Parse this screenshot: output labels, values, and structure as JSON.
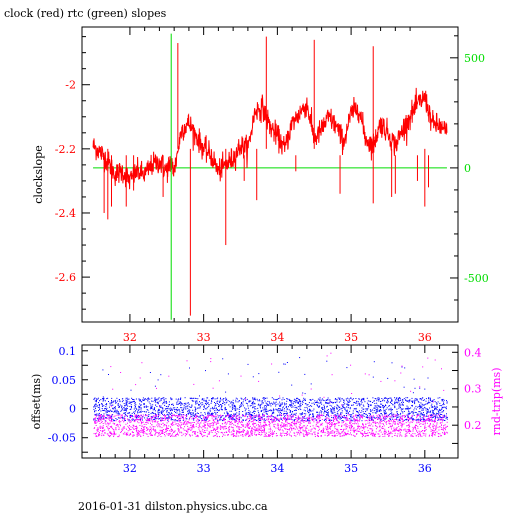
{
  "title": "clock (red) rtc (green) slopes",
  "footer": "2016-01-31 dilston.physics.ubc.ca",
  "colors": {
    "red": "#ff0000",
    "green": "#00dd00",
    "blue": "#0000ff",
    "magenta": "#ff00ff",
    "axis": "#000000"
  },
  "chart_data": [
    {
      "type": "line",
      "ylabel": "clockslope",
      "y2label": "",
      "xlim": [
        31.35,
        36.45
      ],
      "ylim": [
        -2.74,
        -1.82
      ],
      "y2lim": [
        -700,
        640
      ],
      "x_ticks": [
        32,
        33,
        34,
        35,
        36
      ],
      "y_ticks": [
        -2.6,
        -2.4,
        -2.2,
        -2
      ],
      "y2_ticks": [
        -500,
        0,
        500
      ],
      "x_tick_labels": [
        "32",
        "33",
        "34",
        "35",
        "36"
      ],
      "y_tick_labels": [
        "-2.6",
        "-2.4",
        "-2.2",
        "-2"
      ],
      "y2_tick_labels": [
        "-500",
        "0",
        "500"
      ],
      "series": [
        {
          "name": "clock",
          "color": "#ff0000",
          "x": [
            31.5,
            31.6,
            31.7,
            31.8,
            31.9,
            32.0,
            32.1,
            32.2,
            32.3,
            32.4,
            32.5,
            32.55,
            32.6,
            32.7,
            32.8,
            32.9,
            33.0,
            33.1,
            33.2,
            33.3,
            33.4,
            33.5,
            33.6,
            33.7,
            33.8,
            33.9,
            34.0,
            34.1,
            34.2,
            34.3,
            34.4,
            34.5,
            34.6,
            34.7,
            34.8,
            34.9,
            35.0,
            35.1,
            35.2,
            35.3,
            35.4,
            35.5,
            35.6,
            35.7,
            35.8,
            35.9,
            36.0,
            36.1,
            36.2,
            36.3
          ],
          "y": [
            -2.19,
            -2.21,
            -2.24,
            -2.28,
            -2.27,
            -2.3,
            -2.27,
            -2.28,
            -2.25,
            -2.24,
            -2.27,
            -2.24,
            -2.27,
            -2.14,
            -2.12,
            -2.16,
            -2.2,
            -2.22,
            -2.27,
            -2.25,
            -2.23,
            -2.19,
            -2.2,
            -2.08,
            -2.07,
            -2.13,
            -2.16,
            -2.2,
            -2.12,
            -2.09,
            -2.06,
            -2.17,
            -2.14,
            -2.1,
            -2.13,
            -2.18,
            -2.09,
            -2.07,
            -2.17,
            -2.19,
            -2.12,
            -2.15,
            -2.19,
            -2.14,
            -2.1,
            -2.06,
            -2.04,
            -2.12,
            -2.13,
            -2.15
          ]
        },
        {
          "name": "rtc",
          "color": "#00dd00",
          "x": [
            31.5,
            32.55,
            32.6,
            36.3
          ],
          "y": [
            0,
            0,
            0,
            0
          ]
        }
      ],
      "spikes": [
        {
          "series": "clock",
          "x": 32.82,
          "y": -2.72
        },
        {
          "series": "clock",
          "x": 32.65,
          "y": -1.87
        },
        {
          "series": "clock",
          "x": 33.3,
          "y": -2.5
        },
        {
          "series": "clock",
          "x": 33.85,
          "y": -1.85
        },
        {
          "series": "clock",
          "x": 34.5,
          "y": -1.86
        },
        {
          "series": "clock",
          "x": 33.72,
          "y": -2.36
        },
        {
          "series": "clock",
          "x": 35.3,
          "y": -1.88
        },
        {
          "series": "clock",
          "x": 35.3,
          "y": -2.37
        },
        {
          "series": "clock",
          "x": 35.55,
          "y": -2.35
        },
        {
          "series": "clock",
          "x": 36.0,
          "y": -2.38
        },
        {
          "series": "clock",
          "x": 31.7,
          "y": -2.42
        },
        {
          "series": "rtc",
          "x": 32.56,
          "y2": 610
        },
        {
          "series": "rtc",
          "x": 32.56,
          "y2": -690
        }
      ]
    },
    {
      "type": "scatter",
      "ylabel": "offset(ms)",
      "y2label": "rnd-trip(ms)",
      "xlim": [
        31.35,
        36.45
      ],
      "ylim": [
        -0.085,
        0.11
      ],
      "y2lim": [
        0.11,
        0.42
      ],
      "x_ticks": [
        32,
        33,
        34,
        35,
        36
      ],
      "y_ticks": [
        -0.05,
        0,
        0.05,
        0.1
      ],
      "y2_ticks": [
        0.2,
        0.3,
        0.4
      ],
      "x_tick_labels": [
        "32",
        "33",
        "34",
        "35",
        "36"
      ],
      "y_tick_labels": [
        "-0.05",
        "0",
        "0.05",
        "0.1"
      ],
      "y2_tick_labels": [
        "0.2",
        "0.3",
        "0.4"
      ],
      "series": [
        {
          "name": "offset",
          "color": "#0000ff",
          "x_range": [
            31.5,
            36.3
          ],
          "center": 0.0,
          "spread": 0.02
        },
        {
          "name": "rnd-trip",
          "color": "#ff00ff",
          "x_range": [
            31.5,
            36.3
          ],
          "center": 0.2,
          "spread": 0.03
        }
      ]
    }
  ]
}
